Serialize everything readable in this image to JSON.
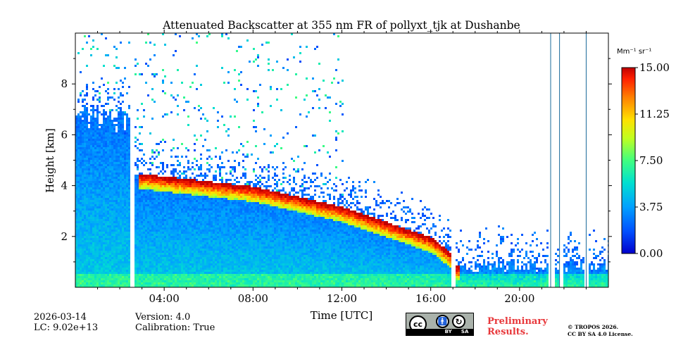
{
  "chart_data": {
    "type": "heatmap",
    "title": "Attenuated Backscatter at 355 nm FR of pollyxt_tjk at Dushanbe",
    "xlabel": "Time [UTC]",
    "ylabel": "Height [km]",
    "xlim_hours": [
      0,
      24
    ],
    "ylim_km": [
      0,
      10
    ],
    "x_ticks": [
      {
        "hour": 4,
        "label": "04:00"
      },
      {
        "hour": 8,
        "label": "08:00"
      },
      {
        "hour": 12,
        "label": "12:00"
      },
      {
        "hour": 16,
        "label": "16:00"
      },
      {
        "hour": 20,
        "label": "20:00"
      }
    ],
    "y_ticks": [
      {
        "km": 2,
        "label": "2"
      },
      {
        "km": 4,
        "label": "4"
      },
      {
        "km": 6,
        "label": "6"
      },
      {
        "km": 8,
        "label": "8"
      }
    ],
    "colorbar": {
      "unit_label": "Mm⁻¹ sr⁻¹",
      "range": [
        0,
        15
      ],
      "ticks": [
        {
          "value": 0,
          "label": "0.00"
        },
        {
          "value": 3.75,
          "label": "3.75"
        },
        {
          "value": 7.5,
          "label": "7.50"
        },
        {
          "value": 11.25,
          "label": "11.25"
        },
        {
          "value": 15,
          "label": "15.00"
        }
      ],
      "colormap": [
        "#0000cc",
        "#0050ff",
        "#00a0ff",
        "#00e0d0",
        "#40ff80",
        "#c0ff20",
        "#ffe000",
        "#ff8000",
        "#ff2000",
        "#c00000"
      ]
    },
    "features": [
      {
        "name": "aerosol-layer-top",
        "points_hour_km": [
          [
            3,
            4.5
          ],
          [
            6,
            4.2
          ],
          [
            8,
            4.0
          ],
          [
            10,
            3.6
          ],
          [
            12,
            3.2
          ],
          [
            14,
            2.6
          ],
          [
            16,
            2.0
          ],
          [
            17,
            1.3
          ]
        ]
      },
      {
        "name": "data-gaps",
        "hours": [
          2.5,
          17,
          21.4,
          21.8,
          23
        ]
      }
    ]
  },
  "footer": {
    "date": "2026-03-14",
    "lc": "LC: 9.02e+13",
    "version": "Version: 4.0",
    "calibration": "Calibration: True",
    "preliminary_line1": "Preliminary",
    "preliminary_line2": "Results.",
    "copyright_line1": "© TROPOS 2026.",
    "copyright_line2": "CC BY SA 4.0 License.",
    "license_badge": {
      "cc": "cc",
      "by": "BY",
      "sa": "SA"
    }
  }
}
